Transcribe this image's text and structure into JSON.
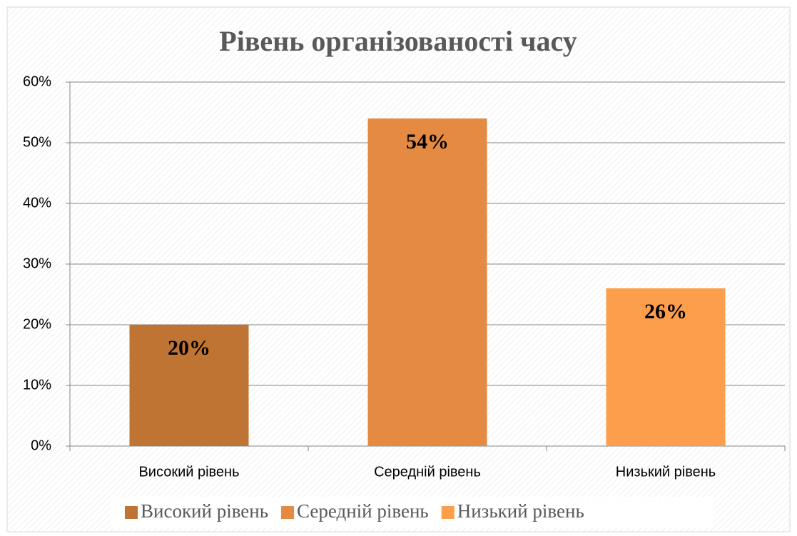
{
  "chart_data": {
    "type": "bar",
    "title": "Рівень організованості часу",
    "categories": [
      "Високий рівень",
      "Середній рівень",
      "Низький рівень"
    ],
    "values": [
      20,
      54,
      26
    ],
    "value_labels": [
      "20%",
      "54%",
      "26%"
    ],
    "colors": [
      "#c07433",
      "#e48a42",
      "#fd9e4d"
    ],
    "ylim": [
      0,
      60
    ],
    "yticks": [
      {
        "value": 0,
        "label": "0%"
      },
      {
        "value": 10,
        "label": "10%"
      },
      {
        "value": 20,
        "label": "20%"
      },
      {
        "value": 30,
        "label": "30%"
      },
      {
        "value": 40,
        "label": "40%"
      },
      {
        "value": 50,
        "label": "50%"
      },
      {
        "value": 60,
        "label": "60%"
      }
    ],
    "grid": true,
    "legend": "bottom"
  }
}
